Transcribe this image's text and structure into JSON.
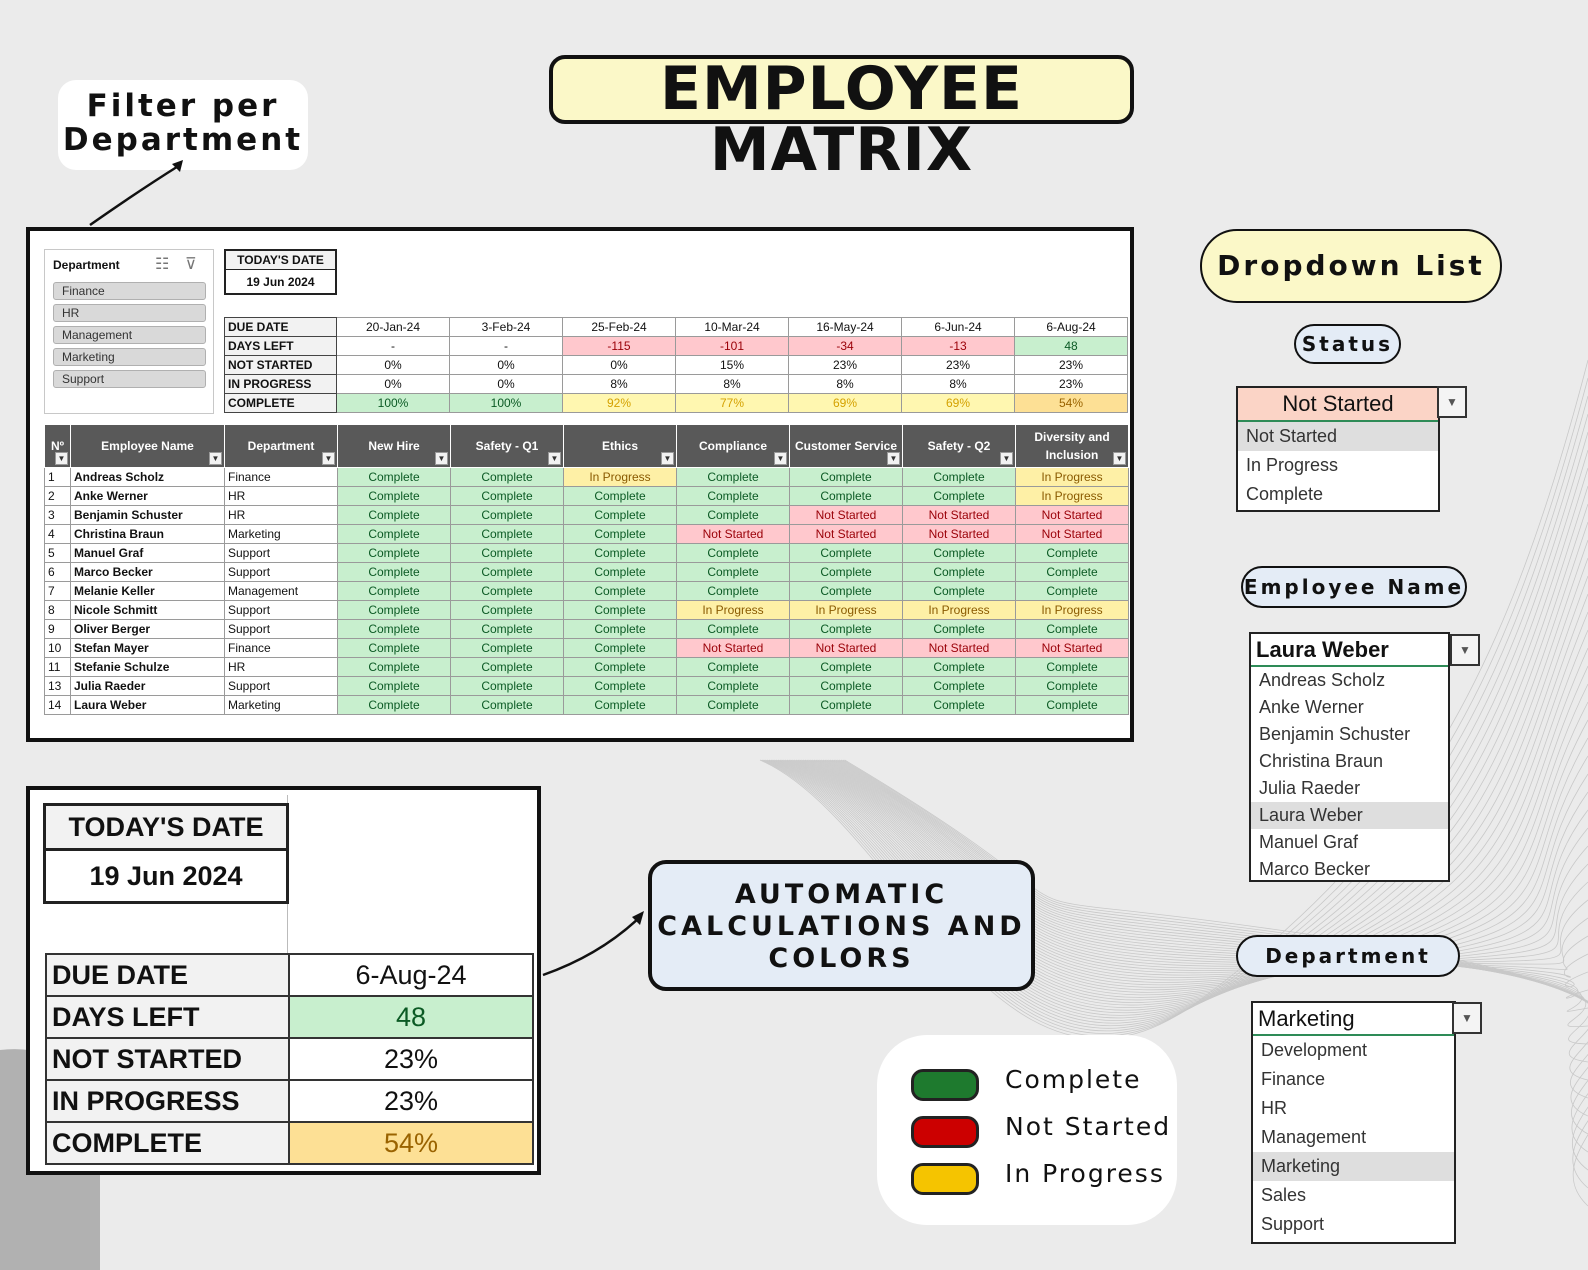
{
  "title": "EMPLOYEE MATRIX",
  "callouts": {
    "filter_line1": "Filter per",
    "filter_line2": "Department",
    "dropdown_list": "Dropdown List",
    "auto_line1": "AUTOMATIC",
    "auto_line2": "CALCULATIONS AND",
    "auto_line3": "COLORS"
  },
  "slicer": {
    "title": "Department",
    "items": [
      "Finance",
      "HR",
      "Management",
      "Marketing",
      "Support"
    ]
  },
  "today": {
    "label": "TODAY'S DATE",
    "value": "19 Jun 2024"
  },
  "summary": {
    "labels": [
      "DUE DATE",
      "DAYS LEFT",
      "NOT STARTED",
      "IN PROGRESS",
      "COMPLETE"
    ],
    "due_date": [
      "20-Jan-24",
      "3-Feb-24",
      "25-Feb-24",
      "10-Mar-24",
      "16-May-24",
      "6-Jun-24",
      "6-Aug-24"
    ],
    "days_left": [
      "-",
      "-",
      "-115",
      "-101",
      "-34",
      "-13",
      "48"
    ],
    "not_started": [
      "0%",
      "0%",
      "0%",
      "15%",
      "23%",
      "23%",
      "23%"
    ],
    "in_progress": [
      "0%",
      "0%",
      "8%",
      "8%",
      "8%",
      "8%",
      "23%"
    ],
    "complete": [
      "100%",
      "100%",
      "92%",
      "77%",
      "69%",
      "69%",
      "54%"
    ]
  },
  "table": {
    "headers": [
      "Nº",
      "Employee Name",
      "Department",
      "New Hire",
      "Safety - Q1",
      "Ethics",
      "Compliance",
      "Customer Service",
      "Safety - Q2",
      "Diversity and Inclusion"
    ],
    "rows": [
      {
        "n": "1",
        "name": "Andreas Scholz",
        "dept": "Finance",
        "s": [
          "Complete",
          "Complete",
          "In Progress",
          "Complete",
          "Complete",
          "Complete",
          "In Progress"
        ]
      },
      {
        "n": "2",
        "name": "Anke Werner",
        "dept": "HR",
        "s": [
          "Complete",
          "Complete",
          "Complete",
          "Complete",
          "Complete",
          "Complete",
          "In Progress"
        ]
      },
      {
        "n": "3",
        "name": "Benjamin Schuster",
        "dept": "HR",
        "s": [
          "Complete",
          "Complete",
          "Complete",
          "Complete",
          "Not Started",
          "Not Started",
          "Not Started"
        ]
      },
      {
        "n": "4",
        "name": "Christina Braun",
        "dept": "Marketing",
        "s": [
          "Complete",
          "Complete",
          "Complete",
          "Not Started",
          "Not Started",
          "Not Started",
          "Not Started"
        ]
      },
      {
        "n": "5",
        "name": "Manuel Graf",
        "dept": "Support",
        "s": [
          "Complete",
          "Complete",
          "Complete",
          "Complete",
          "Complete",
          "Complete",
          "Complete"
        ]
      },
      {
        "n": "6",
        "name": "Marco Becker",
        "dept": "Support",
        "s": [
          "Complete",
          "Complete",
          "Complete",
          "Complete",
          "Complete",
          "Complete",
          "Complete"
        ]
      },
      {
        "n": "7",
        "name": "Melanie Keller",
        "dept": "Management",
        "s": [
          "Complete",
          "Complete",
          "Complete",
          "Complete",
          "Complete",
          "Complete",
          "Complete"
        ]
      },
      {
        "n": "8",
        "name": "Nicole Schmitt",
        "dept": "Support",
        "s": [
          "Complete",
          "Complete",
          "Complete",
          "In Progress",
          "In Progress",
          "In Progress",
          "In Progress"
        ]
      },
      {
        "n": "9",
        "name": "Oliver Berger",
        "dept": "Support",
        "s": [
          "Complete",
          "Complete",
          "Complete",
          "Complete",
          "Complete",
          "Complete",
          "Complete"
        ]
      },
      {
        "n": "10",
        "name": "Stefan Mayer",
        "dept": "Finance",
        "s": [
          "Complete",
          "Complete",
          "Complete",
          "Not Started",
          "Not Started",
          "Not Started",
          "Not Started"
        ]
      },
      {
        "n": "11",
        "name": "Stefanie Schulze",
        "dept": "HR",
        "s": [
          "Complete",
          "Complete",
          "Complete",
          "Complete",
          "Complete",
          "Complete",
          "Complete"
        ]
      },
      {
        "n": "13",
        "name": "Julia Raeder",
        "dept": "Support",
        "s": [
          "Complete",
          "Complete",
          "Complete",
          "Complete",
          "Complete",
          "Complete",
          "Complete"
        ]
      },
      {
        "n": "14",
        "name": "Laura Weber",
        "dept": "Marketing",
        "s": [
          "Complete",
          "Complete",
          "Complete",
          "Complete",
          "Complete",
          "Complete",
          "Complete"
        ]
      }
    ]
  },
  "zoom": {
    "today_label": "TODAY'S DATE",
    "today_value": "19 Jun 2024",
    "labels": [
      "DUE DATE",
      "DAYS LEFT",
      "NOT STARTED",
      "IN PROGRESS",
      "COMPLETE"
    ],
    "values": [
      "6-Aug-24",
      "48",
      "23%",
      "23%",
      "54%"
    ]
  },
  "dropdowns": {
    "status": {
      "title": "Status",
      "value": "Not Started",
      "options": [
        "Not Started",
        "In Progress",
        "Complete"
      ]
    },
    "employee": {
      "title": "Employee Name",
      "value": "Laura Weber",
      "options": [
        "Andreas Scholz",
        "Anke Werner",
        "Benjamin Schuster",
        "Christina Braun",
        "Julia Raeder",
        "Laura Weber",
        "Manuel Graf",
        "Marco Becker"
      ]
    },
    "department": {
      "title": "Department",
      "value": "Marketing",
      "options": [
        "Development",
        "Finance",
        "HR",
        "Management",
        "Marketing",
        "Sales",
        "Support"
      ]
    }
  },
  "legend": {
    "items": [
      {
        "label": "Complete",
        "color": "#1e7a2e"
      },
      {
        "label": "Not Started",
        "color": "#cc0000"
      },
      {
        "label": "In Progress",
        "color": "#f5c400"
      }
    ]
  },
  "colors": {
    "title_bg": "#fbf8c8",
    "pill_bg": "#e4ecf6",
    "complete_fill": "#c8efce",
    "not_started_fill": "#ffc8cd",
    "in_progress_fill": "#fef0a6"
  }
}
